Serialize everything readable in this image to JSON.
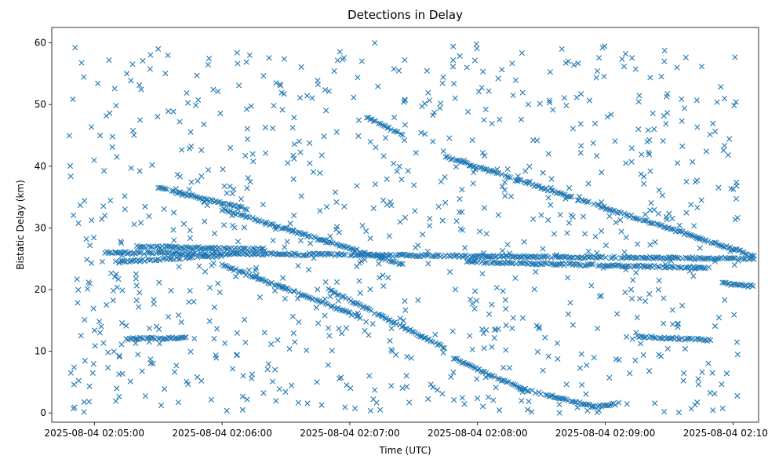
{
  "chart_data": {
    "type": "scatter",
    "title": "Detections in Delay",
    "xlabel": "Time (UTC)",
    "ylabel": "Bistatic Delay (km)",
    "marker": "x",
    "color": "#1f77b4",
    "grid": false,
    "legend": "none",
    "x_start": "2025-08-04 02:04:48",
    "x_end": "2025-08-04 02:10:04",
    "xlim": [
      "2025-08-04 02:04:40",
      "2025-08-04 02:10:12"
    ],
    "ylim": [
      -1.5,
      62.5
    ],
    "xticks": [
      "2025-08-04 02:05:00",
      "2025-08-04 02:06:00",
      "2025-08-04 02:07:00",
      "2025-08-04 02:08:00",
      "2025-08-04 02:09:00",
      "2025-08-04 02:10:00"
    ],
    "yticks": [
      0,
      10,
      20,
      30,
      40,
      50,
      60
    ],
    "tracks": [
      {
        "from": [
          "2025-08-04 02:05:30",
          36.5
        ],
        "to": [
          "2025-08-04 02:06:12",
          33.0
        ]
      },
      {
        "from": [
          "2025-08-04 02:06:00",
          33.0
        ],
        "to": [
          "2025-08-04 02:07:25",
          24.0
        ]
      },
      {
        "from": [
          "2025-08-04 02:06:00",
          24.0
        ],
        "to": [
          "2025-08-04 02:07:05",
          15.5
        ]
      },
      {
        "from": [
          "2025-08-04 02:06:50",
          20.0
        ],
        "to": [
          "2025-08-04 02:07:45",
          10.5
        ]
      },
      {
        "from": [
          "2025-08-04 02:07:48",
          9.0
        ],
        "to": [
          "2025-08-04 02:08:20",
          4.0
        ]
      },
      {
        "from": [
          "2025-08-04 02:08:20",
          4.0
        ],
        "to": [
          "2025-08-04 02:08:55",
          1.0
        ]
      },
      {
        "from": [
          "2025-08-04 02:08:55",
          1.0
        ],
        "to": [
          "2025-08-04 02:09:05",
          1.5
        ]
      },
      {
        "from": [
          "2025-08-04 02:07:08",
          48.0
        ],
        "to": [
          "2025-08-04 02:07:25",
          45.0
        ]
      },
      {
        "from": [
          "2025-08-04 02:07:45",
          41.5
        ],
        "to": [
          "2025-08-04 02:10:10",
          25.5
        ]
      },
      {
        "from": [
          "2025-08-04 02:05:05",
          26.0
        ],
        "to": [
          "2025-08-04 02:10:10",
          25.0
        ]
      },
      {
        "from": [
          "2025-08-04 02:05:15",
          12.0
        ],
        "to": [
          "2025-08-04 02:05:45",
          12.2
        ]
      },
      {
        "from": [
          "2025-08-04 02:09:15",
          12.4
        ],
        "to": [
          "2025-08-04 02:09:50",
          11.8
        ]
      },
      {
        "from": [
          "2025-08-04 02:05:10",
          24.5
        ],
        "to": [
          "2025-08-04 02:06:00",
          25.5
        ]
      },
      {
        "from": [
          "2025-08-04 02:07:55",
          24.5
        ],
        "to": [
          "2025-08-04 02:09:50",
          23.5
        ]
      },
      {
        "from": [
          "2025-08-04 02:05:20",
          27.0
        ],
        "to": [
          "2025-08-04 02:06:20",
          26.5
        ]
      },
      {
        "from": [
          "2025-08-04 02:09:55",
          21.0
        ],
        "to": [
          "2025-08-04 02:10:10",
          20.5
        ]
      }
    ],
    "clutter_count": 900,
    "clutter_range": [
      0,
      60
    ]
  }
}
